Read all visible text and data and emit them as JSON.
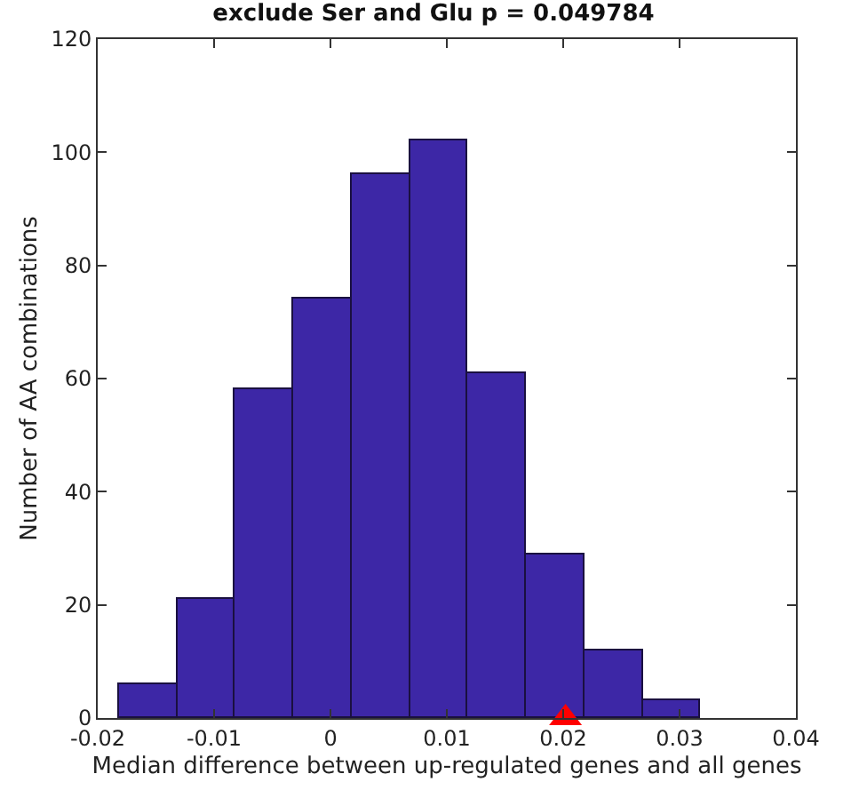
{
  "chart_data": {
    "type": "histogram",
    "title": "exclude Ser and Glu p = 0.049784",
    "xlabel": "Median difference between up-regulated genes and all genes",
    "ylabel": "Number of AA combinations",
    "series": [
      {
        "color": "#3d27a6",
        "bins": [
          -0.0182,
          -0.0132,
          -0.0082,
          -0.0032,
          0.0018,
          0.0068,
          0.0118,
          0.0168,
          0.0218,
          0.0268,
          0.0318
        ],
        "values": [
          6,
          21,
          58,
          74,
          96,
          102,
          61,
          29,
          12,
          3
        ]
      },
      {
        "type": "scatter",
        "color": "#ff0000",
        "marker": "triangle",
        "x": [
          0.0202
        ],
        "values": [
          0
        ]
      }
    ],
    "xlim": [
      -0.02,
      0.04
    ],
    "xticks": [
      -0.02,
      -0.01,
      0,
      0.01,
      0.02,
      0.03,
      0.04
    ],
    "ylim": [
      0,
      120
    ],
    "yticks": [
      0,
      20,
      40,
      60,
      80,
      100,
      120
    ]
  }
}
